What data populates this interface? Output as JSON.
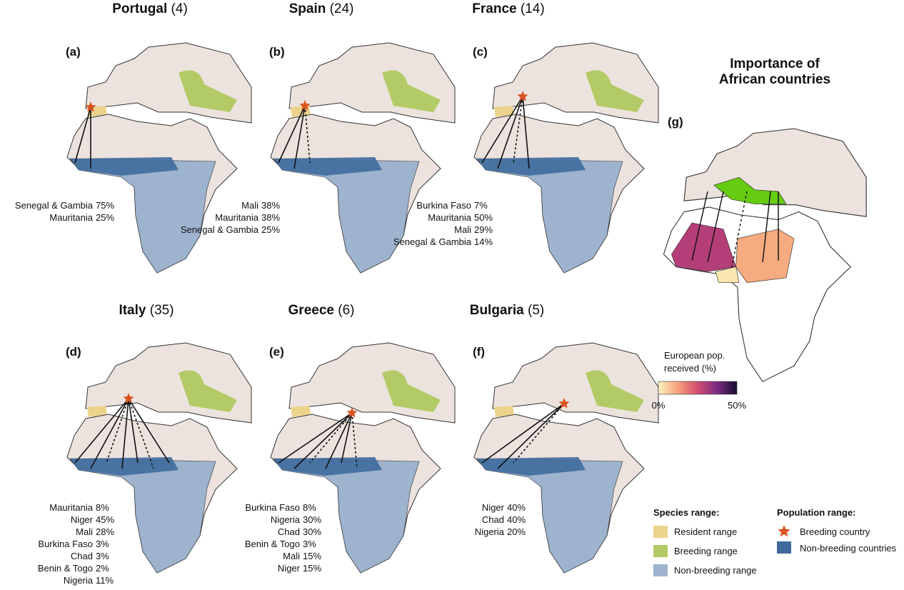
{
  "panels": [
    {
      "letter": "(a)",
      "country": "Portugal",
      "count": "(4)",
      "destinations": [
        [
          "Senegal & Gambia",
          "75%"
        ],
        [
          "Mauritania",
          "25%"
        ]
      ]
    },
    {
      "letter": "(b)",
      "country": "Spain",
      "count": "(24)",
      "destinations": [
        [
          "Mali",
          "38%"
        ],
        [
          "Mauritania",
          "38%"
        ],
        [
          "Senegal & Gambia",
          "25%"
        ]
      ]
    },
    {
      "letter": "(c)",
      "country": "France",
      "count": "(14)",
      "destinations": [
        [
          "Burkina Faso",
          "7%"
        ],
        [
          "Mauritania",
          "50%"
        ],
        [
          "Mali",
          "29%"
        ],
        [
          "Senegal & Gambia",
          "14%"
        ]
      ]
    },
    {
      "letter": "(d)",
      "country": "Italy",
      "count": "(35)",
      "destinations": [
        [
          "Mauritania",
          "8%"
        ],
        [
          "Niger",
          "45%"
        ],
        [
          "Mali",
          "28%"
        ],
        [
          "Burkina Faso",
          "3%"
        ],
        [
          "Chad",
          "3%"
        ],
        [
          "Benin & Togo",
          "2%"
        ],
        [
          "Nigeria",
          "11%"
        ]
      ]
    },
    {
      "letter": "(e)",
      "country": "Greece",
      "count": "(6)",
      "destinations": [
        [
          "Burkina Faso",
          "8%"
        ],
        [
          "Nigeria",
          "30%"
        ],
        [
          "Chad",
          "30%"
        ],
        [
          "Benin & Togo",
          "3%"
        ],
        [
          "Mali",
          "15%"
        ],
        [
          "Niger",
          "15%"
        ]
      ]
    },
    {
      "letter": "(f)",
      "country": "Bulgaria",
      "count": "(5)",
      "destinations": [
        [
          "Niger",
          "40%"
        ],
        [
          "Chad",
          "40%"
        ],
        [
          "Nigeria",
          "20%"
        ]
      ]
    }
  ],
  "summary": {
    "title": "Importance of African countries",
    "letter": "(g)",
    "colorbar_label": "European pop. received (%)",
    "colorbar_ticks": [
      "0%",
      "50%"
    ]
  },
  "legend": {
    "species_title": "Species range:",
    "species_items": [
      "Resident range",
      "Breeding range",
      "Non-breeding range"
    ],
    "population_title": "Population range:",
    "population_items": [
      "Breeding country",
      "Non-breeding countries"
    ]
  }
}
